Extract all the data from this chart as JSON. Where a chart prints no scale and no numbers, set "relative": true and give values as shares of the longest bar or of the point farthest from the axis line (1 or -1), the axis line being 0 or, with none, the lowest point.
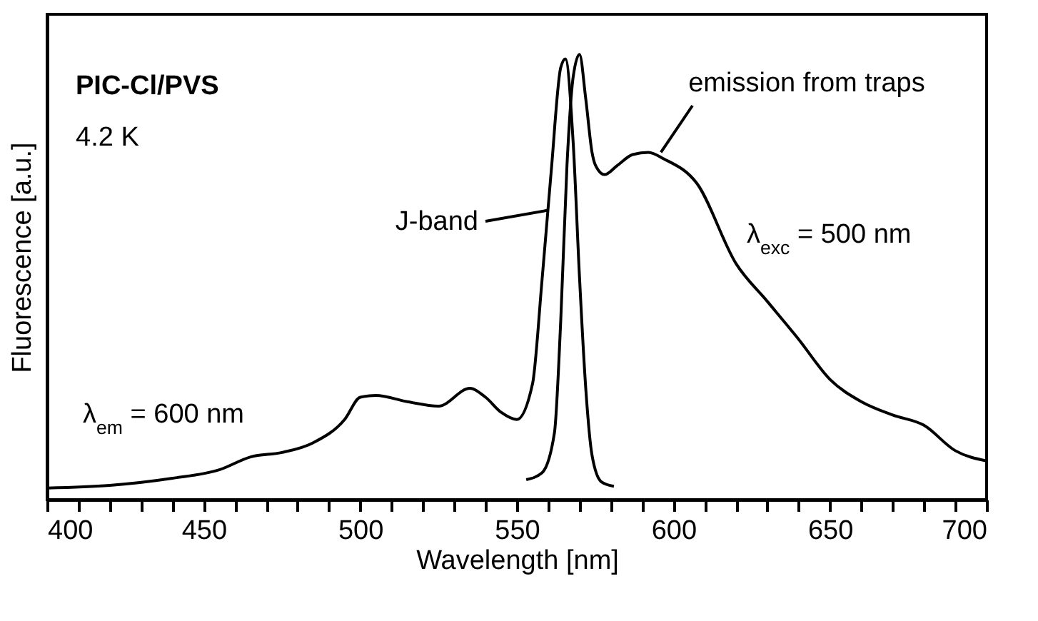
{
  "chart_data": {
    "type": "line",
    "relative": true,
    "xlabel": "Wavelength [nm]",
    "ylabel": "Fluorescence [a.u.]",
    "xlim": [
      400,
      700
    ],
    "xticks": [
      400,
      {
        "value": 410,
        "label": null
      },
      {
        "value": 420,
        "label": null
      },
      {
        "value": 430,
        "label": null
      },
      {
        "value": 440,
        "label": null
      },
      450,
      {
        "value": 460,
        "label": null
      },
      {
        "value": 470,
        "label": null
      },
      {
        "value": 480,
        "label": null
      },
      {
        "value": 490,
        "label": null
      },
      500,
      {
        "value": 510,
        "label": null
      },
      {
        "value": 520,
        "label": null
      },
      {
        "value": 530,
        "label": null
      },
      {
        "value": 540,
        "label": null
      },
      550,
      {
        "value": 560,
        "label": null
      },
      {
        "value": 570,
        "label": null
      },
      {
        "value": 580,
        "label": null
      },
      {
        "value": 590,
        "label": null
      },
      600,
      {
        "value": 610,
        "label": null
      },
      {
        "value": 620,
        "label": null
      },
      {
        "value": 630,
        "label": null
      },
      {
        "value": 640,
        "label": null
      },
      650,
      {
        "value": 660,
        "label": null
      },
      {
        "value": 670,
        "label": null
      },
      {
        "value": 680,
        "label": null
      },
      {
        "value": 690,
        "label": null
      },
      700
    ],
    "legend": false,
    "grid": false,
    "line_style": "solid",
    "marker": "none",
    "series": [
      {
        "color": "#000000",
        "x": [
          400,
          420,
          440,
          455,
          465,
          475,
          485,
          495,
          500,
          505,
          515,
          525,
          535,
          540,
          545,
          550,
          555,
          558,
          561,
          564,
          565.5,
          568,
          570,
          572,
          574,
          577,
          581
        ],
        "values": [
          0.026,
          0.032,
          0.048,
          0.067,
          0.096,
          0.106,
          0.128,
          0.18,
          0.23,
          0.234,
          0.22,
          0.21,
          0.25,
          0.23,
          0.196,
          0.18,
          0.26,
          0.49,
          0.74,
          0.97,
          0.99,
          0.8,
          0.5,
          0.25,
          0.1,
          0.04,
          0.03
        ]
      },
      {
        "color": "#000000",
        "x": [
          553,
          558,
          562,
          564,
          566,
          568,
          570,
          572,
          574,
          576,
          578,
          582,
          587,
          592,
          597,
          607.5,
          620,
          630,
          640,
          650,
          660,
          670,
          680,
          690,
          700
        ],
        "values": [
          0.045,
          0.06,
          0.15,
          0.4,
          0.75,
          0.95,
          1.0,
          0.9,
          0.78,
          0.74,
          0.73,
          0.75,
          0.775,
          0.78,
          0.765,
          0.71,
          0.53,
          0.445,
          0.36,
          0.27,
          0.22,
          0.19,
          0.167,
          0.11,
          0.087
        ]
      }
    ],
    "annotations": [
      "PIC-Cl/PVS",
      "4.2 K",
      "λ$_{em}$ = 600 nm",
      "λ$_{exc}$ = 500 nm",
      {
        "text": "J-band",
        "x": 560,
        "y": 0.65
      },
      {
        "text": "emission from traps",
        "x": 596,
        "y": 0.78
      }
    ]
  }
}
